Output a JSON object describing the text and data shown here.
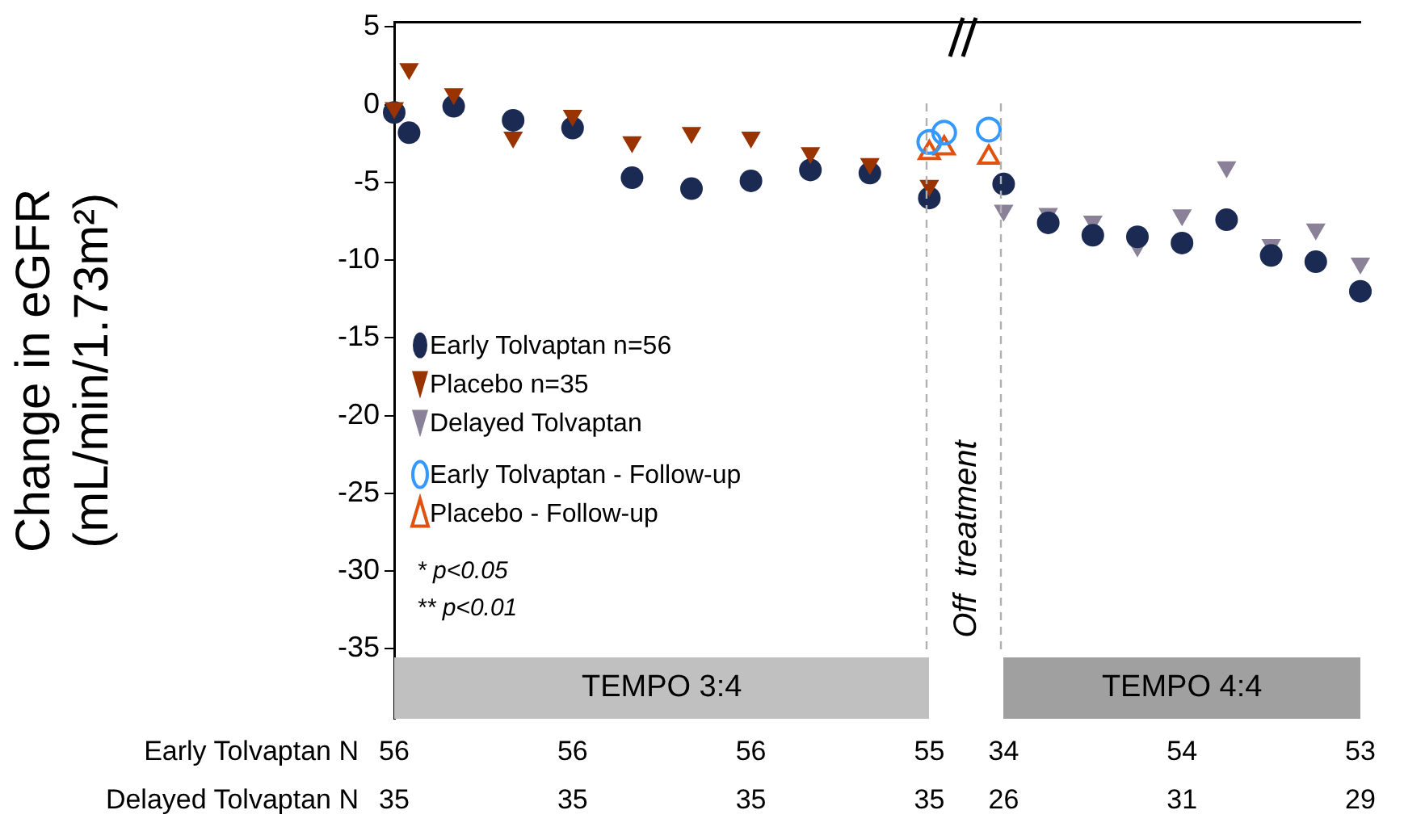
{
  "chart_data": {
    "type": "scatter",
    "ylabel": "Change in eGFR\n(mL/min/1.73m²)",
    "categories": [
      null,
      null,
      null,
      null,
      null,
      null,
      null,
      null,
      null,
      null,
      null,
      null,
      null,
      null,
      null,
      null,
      null,
      null,
      null,
      null,
      null,
      null,
      null,
      null,
      null,
      null,
      null,
      null,
      null,
      null,
      null,
      null,
      null,
      null,
      null,
      null,
      null,
      null,
      null,
      null,
      null,
      null,
      null,
      null,
      null,
      null,
      null,
      null,
      null,
      null,
      null,
      null,
      null,
      null,
      null,
      null,
      null,
      null,
      null,
      null,
      null,
      null,
      null,
      null,
      null,
      null
    ],
    "ylim": [
      -39.5,
      5.3
    ],
    "yticks": [
      -35,
      -30,
      -25,
      -20,
      -15,
      -10,
      -5,
      0,
      5
    ],
    "tick_labels": "y",
    "grid": false,
    "legend": "bottom left",
    "series": [
      {
        "name": "Delayed Tolvaptan",
        "color": "#8a8098",
        "marker": "triangle-down",
        "values": [
          null,
          null,
          null,
          null,
          null,
          null,
          null,
          null,
          null,
          null,
          null,
          null,
          null,
          null,
          null,
          null,
          null,
          null,
          null,
          null,
          null,
          null,
          null,
          null,
          null,
          null,
          null,
          null,
          null,
          null,
          null,
          null,
          null,
          null,
          null,
          null,
          null,
          null,
          null,
          null,
          null,
          -6.8,
          null,
          null,
          -7.0,
          null,
          null,
          -7.5,
          null,
          null,
          -9.1,
          null,
          null,
          -7.1,
          null,
          null,
          -4.0,
          null,
          null,
          -9.0,
          null,
          null,
          -8.0,
          null,
          null,
          -10.2
        ]
      },
      {
        "name": "Early Tolvaptan n=56",
        "color": "#1b2a52",
        "marker": "circle",
        "values": [
          -0.5,
          -1.8,
          null,
          null,
          -0.1,
          null,
          null,
          null,
          -1.0,
          null,
          null,
          null,
          -1.5,
          null,
          null,
          null,
          -4.7,
          null,
          null,
          null,
          -5.4,
          null,
          null,
          null,
          -4.9,
          null,
          null,
          null,
          -4.2,
          null,
          null,
          null,
          -4.4,
          null,
          null,
          null,
          -6.0,
          null,
          null,
          null,
          null,
          -5.1,
          null,
          null,
          -7.6,
          null,
          null,
          -8.4,
          null,
          null,
          -8.5,
          null,
          null,
          -8.9,
          null,
          null,
          -7.4,
          null,
          null,
          -9.7,
          null,
          null,
          -10.1,
          null,
          null,
          -12.0
        ]
      },
      {
        "name": "Placebo n=35",
        "color": "#993300",
        "marker": "triangle-down",
        "values": [
          -0.2,
          2.3,
          null,
          null,
          0.7,
          null,
          null,
          null,
          -2.1,
          null,
          null,
          null,
          -0.7,
          null,
          null,
          null,
          -2.4,
          null,
          null,
          null,
          -1.8,
          null,
          null,
          null,
          -2.1,
          null,
          null,
          null,
          -3.1,
          null,
          null,
          null,
          -3.8,
          null,
          null,
          null,
          -5.2,
          null,
          null,
          null,
          null,
          null,
          null,
          null,
          null,
          null,
          null,
          null,
          null,
          null,
          null,
          null,
          null,
          null,
          null,
          null,
          null,
          null,
          null,
          null,
          null,
          null,
          null,
          null,
          null,
          null
        ]
      },
      {
        "name": "Early Tolvaptan - Follow-up",
        "color": "#3399ff",
        "marker": "circle-open",
        "values": [
          null,
          null,
          null,
          null,
          null,
          null,
          null,
          null,
          null,
          null,
          null,
          null,
          null,
          null,
          null,
          null,
          null,
          null,
          null,
          null,
          null,
          null,
          null,
          null,
          null,
          null,
          null,
          null,
          null,
          null,
          null,
          null,
          null,
          null,
          null,
          null,
          -2.4,
          -1.8,
          null,
          null,
          -1.6,
          null,
          null,
          null,
          null,
          null,
          null,
          null,
          null,
          null,
          null,
          null,
          null,
          null,
          null,
          null,
          null,
          null,
          null,
          null,
          null,
          null,
          null,
          null,
          null,
          null
        ]
      },
      {
        "name": "Placebo - Follow-up",
        "color": "#e0520f",
        "marker": "triangle-open",
        "values": [
          null,
          null,
          null,
          null,
          null,
          null,
          null,
          null,
          null,
          null,
          null,
          null,
          null,
          null,
          null,
          null,
          null,
          null,
          null,
          null,
          null,
          null,
          null,
          null,
          null,
          null,
          null,
          null,
          null,
          null,
          null,
          null,
          null,
          null,
          null,
          null,
          -3.1,
          -2.8,
          null,
          null,
          -3.4,
          null,
          null,
          null,
          null,
          null,
          null,
          null,
          null,
          null,
          null,
          null,
          null,
          null,
          null,
          null,
          null,
          null,
          null,
          null,
          null,
          null,
          null,
          null,
          null,
          null
        ]
      }
    ],
    "annotations": [
      "Off  treatment",
      "* p<0.05",
      "** p<0.01",
      "TEMPO 3:4",
      "TEMPO 4:4",
      "Early Tolvaptan N",
      "56",
      "56",
      "56",
      "55",
      "34",
      "54",
      "53",
      "Delayed Tolvaptan N",
      "35",
      "35",
      "35",
      "35",
      "26",
      "31",
      "29"
    ]
  }
}
